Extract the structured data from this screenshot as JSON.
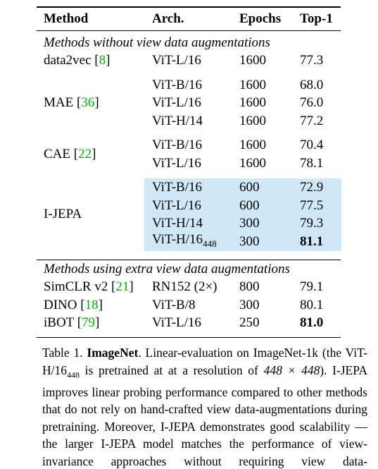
{
  "table": {
    "header": [
      "Method",
      "Arch.",
      "Epochs",
      "Top-1"
    ],
    "sections": [
      {
        "title": "Methods without view data augmentations",
        "groups": [
          {
            "method": "data2vec",
            "ref": [
              "[",
              "8",
              "]"
            ],
            "rows": [
              {
                "arch": "ViT-L/16",
                "epochs": "1600",
                "top1": "77.3"
              }
            ]
          },
          {
            "method": "MAE",
            "ref": [
              "[",
              "36",
              "]"
            ],
            "rows": [
              {
                "arch": "ViT-B/16",
                "epochs": "1600",
                "top1": "68.0"
              },
              {
                "arch": "ViT-L/16",
                "epochs": "1600",
                "top1": "76.0"
              },
              {
                "arch": "ViT-H/14",
                "epochs": "1600",
                "top1": "77.2"
              }
            ]
          },
          {
            "method": "CAE",
            "ref": [
              "[",
              "22",
              "]"
            ],
            "rows": [
              {
                "arch": "ViT-B/16",
                "epochs": "1600",
                "top1": "70.4"
              },
              {
                "arch": "ViT-L/16",
                "epochs": "1600",
                "top1": "78.1"
              }
            ]
          },
          {
            "method": "I-JEPA",
            "rows": [
              {
                "arch": "ViT-B/16",
                "epochs": "600",
                "top1": "72.9",
                "highlight": true
              },
              {
                "arch": "ViT-L/16",
                "epochs": "600",
                "top1": "77.5",
                "highlight": true
              },
              {
                "arch": "ViT-H/14",
                "epochs": "300",
                "top1": "79.3",
                "highlight": true
              },
              {
                "arch": "ViT-H/16",
                "arch_sub": "448",
                "epochs": "300",
                "top1": "81.1",
                "highlight": true,
                "bold": true
              }
            ]
          }
        ]
      },
      {
        "title": "Methods using extra view data augmentations",
        "groups": [
          {
            "method": "SimCLR v2",
            "ref": [
              "[",
              "21",
              "]"
            ],
            "rows": [
              {
                "arch": "RN152 (2×)",
                "epochs": "800",
                "top1": "79.1"
              }
            ]
          },
          {
            "method": "DINO",
            "ref": [
              "[",
              "18",
              "]"
            ],
            "rows": [
              {
                "arch": "ViT-B/8",
                "epochs": "300",
                "top1": "80.1"
              }
            ]
          },
          {
            "method": "iBOT",
            "ref": [
              "[",
              "79",
              "]"
            ],
            "rows": [
              {
                "arch": "ViT-L/16",
                "epochs": "250",
                "top1": "81.0",
                "bold": true
              }
            ]
          }
        ]
      }
    ]
  },
  "caption": [
    {
      "text": "Table 1. "
    },
    {
      "text": "ImageNet",
      "style": "bold"
    },
    {
      "text": ". Linear-evaluation on ImageNet-1k (the ViT-H/16"
    },
    {
      "text": "448",
      "style": "sub"
    },
    {
      "text": " is pretrained at at a resolution of "
    },
    {
      "text": "448 × 448",
      "style": "math"
    },
    {
      "text": "). I-JEPA improves linear probing performance compared to other methods that do not rely on hand-crafted view data-augmentations during pretraining. Moreover, I-JEPA demonstrates good scalability — the larger I-JEPA model matches the performance of view-invariance approaches without requiring view data-augmentations."
    }
  ]
}
